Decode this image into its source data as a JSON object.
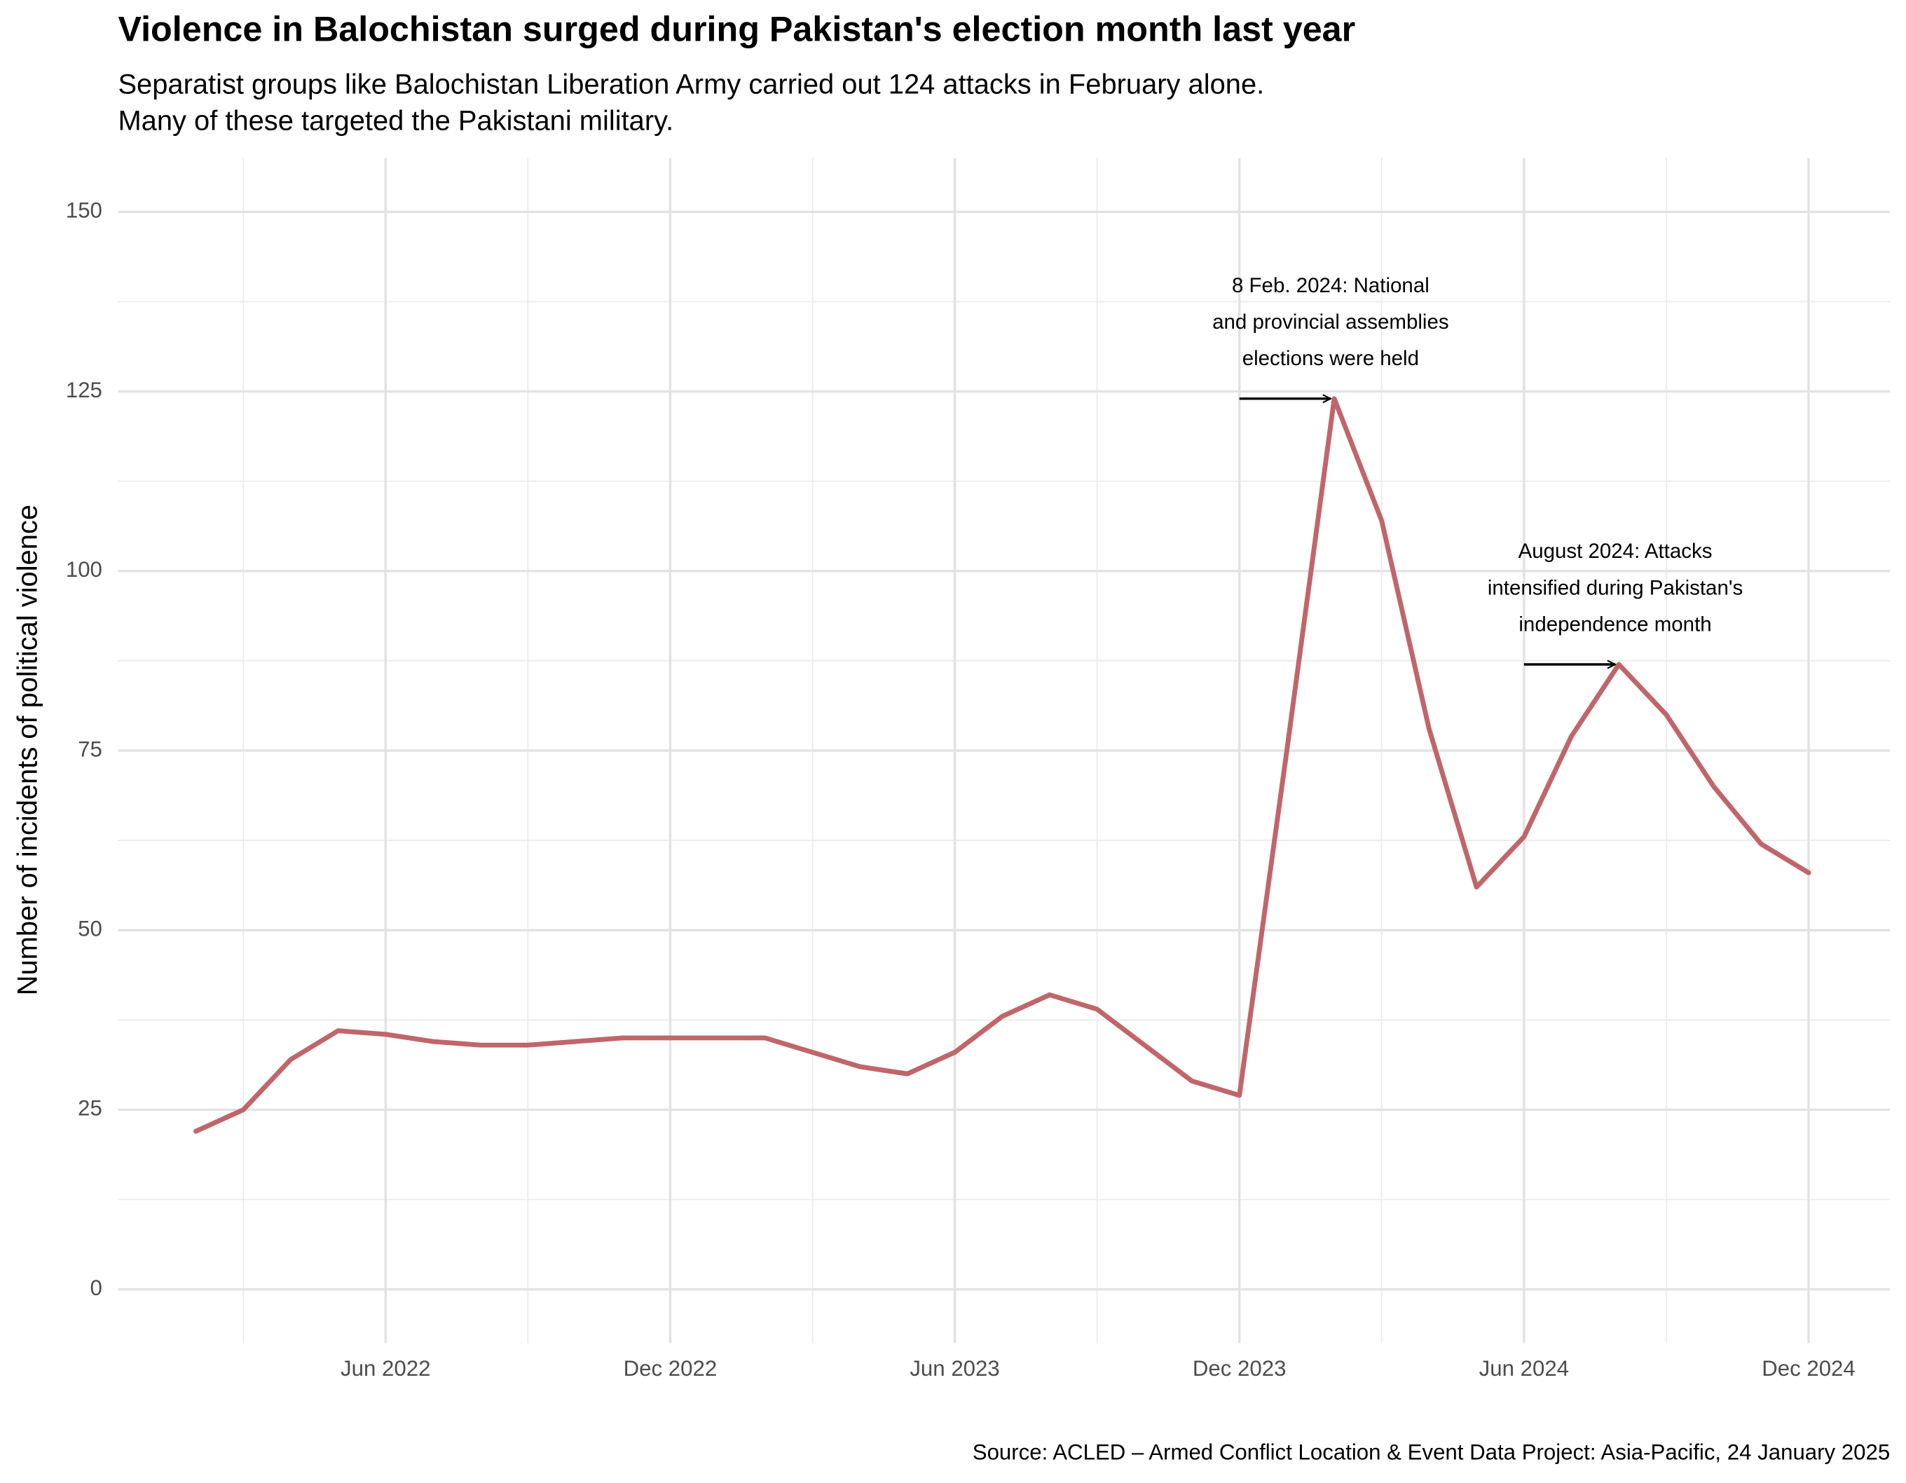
{
  "chart_data": {
    "type": "line",
    "title": "Violence in Balochistan surged during Pakistan's election month last year",
    "subtitle": [
      "Separatist groups like Balochistan Liberation Army carried out 124 attacks in February alone.",
      "Many of these targeted the Pakistani military."
    ],
    "y_label": "Number of incidents of political violence",
    "source": "Source: ACLED – Armed Conflict Location & Event Data Project: Asia-Pacific, 24 January 2025",
    "x": [
      "2022-02",
      "2022-03",
      "2022-04",
      "2022-05",
      "2022-06",
      "2022-07",
      "2022-08",
      "2022-09",
      "2022-10",
      "2022-11",
      "2022-12",
      "2023-01",
      "2023-02",
      "2023-03",
      "2023-04",
      "2023-05",
      "2023-06",
      "2023-07",
      "2023-08",
      "2023-09",
      "2023-10",
      "2023-11",
      "2023-12",
      "2024-01",
      "2024-02",
      "2024-03",
      "2024-04",
      "2024-05",
      "2024-06",
      "2024-07",
      "2024-08",
      "2024-09",
      "2024-10",
      "2024-11",
      "2024-12"
    ],
    "series": [
      {
        "name": "Incidents",
        "color": "#c0666b",
        "values": [
          22,
          25,
          32,
          36,
          35.5,
          34.5,
          34,
          34,
          34.5,
          35,
          35,
          35,
          35,
          33,
          31,
          30,
          33,
          38,
          41,
          39,
          34,
          29,
          27,
          75,
          124,
          107,
          78,
          56,
          63,
          77,
          87,
          80,
          70,
          62,
          58
        ]
      }
    ],
    "xlim": [
      "2022-01",
      "2025-01"
    ],
    "xticks": [
      {
        "value": "2022-06",
        "label": "Jun 2022"
      },
      {
        "value": "2022-12",
        "label": "Dec 2022"
      },
      {
        "value": "2023-06",
        "label": "Jun 2023"
      },
      {
        "value": "2023-12",
        "label": "Dec 2023"
      },
      {
        "value": "2024-06",
        "label": "Jun 2024"
      },
      {
        "value": "2024-12",
        "label": "Dec 2024"
      }
    ],
    "ylim": [
      -7.5,
      157.5
    ],
    "yticks": [
      0,
      25,
      50,
      75,
      100,
      125,
      150
    ],
    "grid": true,
    "annotations": [
      {
        "lines": [
          "8 Feb. 2024: National",
          "and provincial assemblies",
          "elections were held"
        ],
        "x": "2024-02",
        "y": 124,
        "from": "2023-12"
      },
      {
        "lines": [
          "August 2024: Attacks",
          "intensified during Pakistan's",
          "independence month"
        ],
        "x": "2024-08",
        "y": 87,
        "from": "2024-06"
      }
    ]
  }
}
